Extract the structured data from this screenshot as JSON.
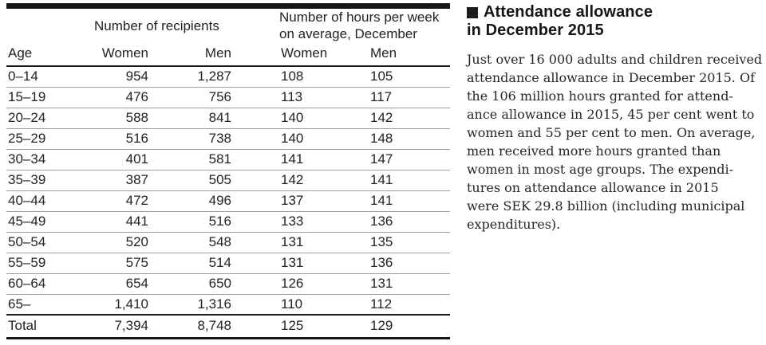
{
  "table": {
    "group_headers": {
      "recipients": "Number of recipients",
      "hours": "Number of hours per week on average, December"
    },
    "columns": [
      "Age",
      "Women",
      "Men",
      "Women",
      "Men"
    ],
    "rows": [
      [
        "0–14",
        "954",
        "1,287",
        "108",
        "105"
      ],
      [
        "15–19",
        "476",
        "756",
        "113",
        "117"
      ],
      [
        "20–24",
        "588",
        "841",
        "140",
        "142"
      ],
      [
        "25–29",
        "516",
        "738",
        "140",
        "148"
      ],
      [
        "30–34",
        "401",
        "581",
        "141",
        "147"
      ],
      [
        "35–39",
        "387",
        "505",
        "142",
        "141"
      ],
      [
        "40–44",
        "472",
        "496",
        "137",
        "141"
      ],
      [
        "45–49",
        "441",
        "516",
        "133",
        "136"
      ],
      [
        "50–54",
        "520",
        "548",
        "131",
        "135"
      ],
      [
        "55–59",
        "575",
        "514",
        "131",
        "136"
      ],
      [
        "60–64",
        "654",
        "650",
        "126",
        "131"
      ],
      [
        "65–",
        "1,410",
        "1,316",
        "110",
        "112"
      ]
    ],
    "total_row": [
      "Total",
      "7,394",
      "8,748",
      "125",
      "129"
    ]
  },
  "article": {
    "title_line1": "Attendance allowance",
    "title_line2": "in December 2015",
    "body_lines": [
      "Just over 16 000 adults and children received",
      "attendance allowance in December 2015. Of",
      "the 106 million hours granted for attend-",
      "ance allowance in 2015, 45 per cent went to",
      "women and 55 per cent to men. On average,",
      "men received more hours granted than",
      "women in most age groups. The expendi-",
      "tures on attendance allowance in 2015",
      "were SEK 29.8 billion (including municipal",
      "expenditures)."
    ]
  },
  "colors": {
    "text": "#232323",
    "rule_dark": "#1a1a1a",
    "rule_light": "#9e9e9e"
  }
}
